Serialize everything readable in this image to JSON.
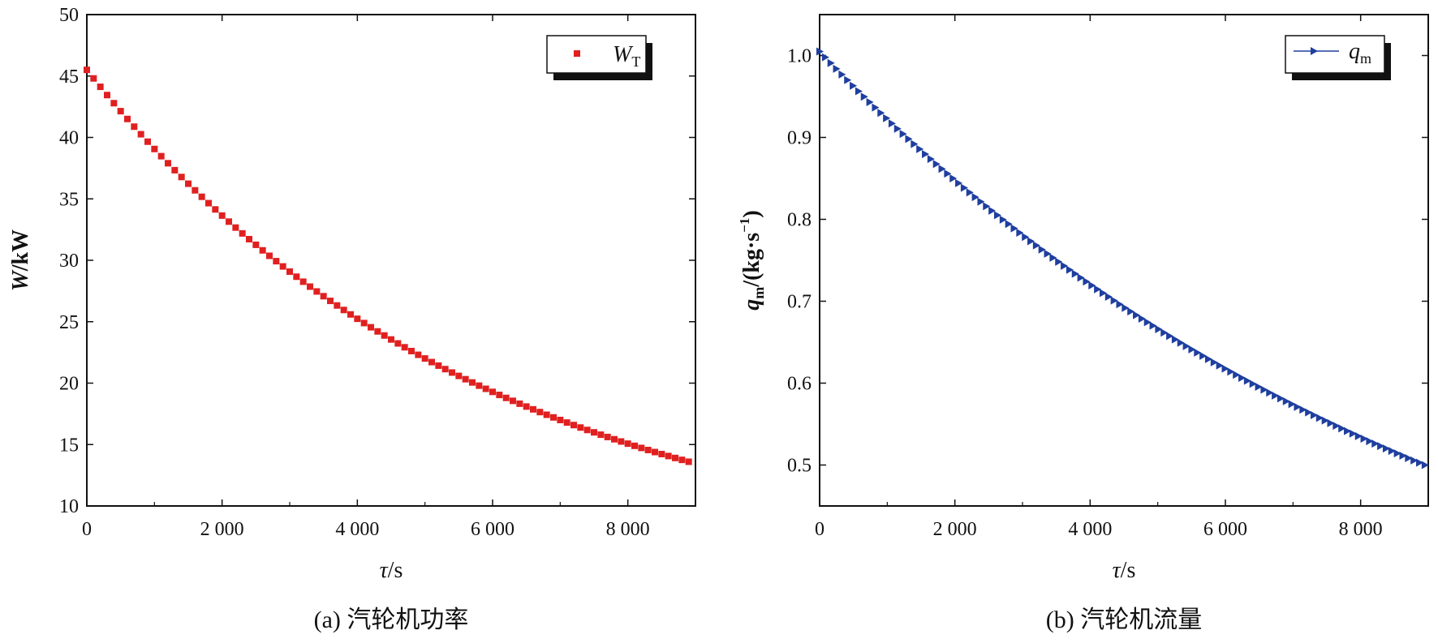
{
  "colors": {
    "series_a": "#e02020",
    "series_b": "#1f3f9f",
    "axis": "#111111"
  },
  "chart_data": [
    {
      "type": "scatter",
      "panel": "a",
      "caption": "(a) 汽轮机功率",
      "xlabel": {
        "italic": "τ",
        "rest": "/s"
      },
      "ylabel": {
        "italic": "W",
        "rest": "/kW"
      },
      "xlim": [
        0,
        9000
      ],
      "ylim": [
        10,
        50
      ],
      "x_ticks": [
        0,
        2000,
        4000,
        6000,
        8000
      ],
      "x_tick_labels": [
        "0",
        "2 000",
        "4 000",
        "6 000",
        "8 000"
      ],
      "y_ticks": [
        10,
        15,
        20,
        25,
        30,
        35,
        40,
        45,
        50
      ],
      "y_tick_labels": [
        "10",
        "15",
        "20",
        "25",
        "30",
        "35",
        "40",
        "45",
        "50"
      ],
      "marker": "square",
      "legend": {
        "main": "W",
        "sub": "T",
        "placement": "top-right"
      },
      "series": [
        {
          "name": "W_T",
          "start": 45.5,
          "end": 13.6,
          "tau": 5800,
          "x_start": 0,
          "x_end": 8900,
          "count": 90
        }
      ]
    },
    {
      "type": "scatter",
      "panel": "b",
      "caption": "(b) 汽轮机流量",
      "xlabel": {
        "italic": "τ",
        "rest": "/s"
      },
      "ylabel": {
        "italic": "q",
        "sub": "m",
        "rest": "/(kg·s",
        "sup": "−1",
        "close": ")"
      },
      "xlim": [
        0,
        9000
      ],
      "ylim": [
        0.45,
        1.05
      ],
      "x_ticks": [
        0,
        2000,
        4000,
        6000,
        8000
      ],
      "x_tick_labels": [
        "0",
        "2 000",
        "4 000",
        "6 000",
        "8 000"
      ],
      "y_ticks": [
        0.5,
        0.6,
        0.7,
        0.8,
        0.9,
        1.0
      ],
      "y_tick_labels": [
        "0.5",
        "0.6",
        "0.7",
        "0.8",
        "0.9",
        "1.0"
      ],
      "marker": "triangle-right",
      "legend": {
        "main": "q",
        "sub": "m",
        "placement": "top-right"
      },
      "series": [
        {
          "name": "q_m",
          "start": 1.005,
          "end": 0.5,
          "tau": 9500,
          "x_start": 0,
          "x_end": 8950,
          "count": 110
        }
      ]
    }
  ]
}
